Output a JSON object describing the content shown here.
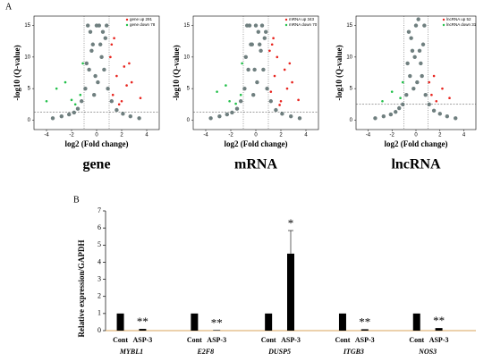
{
  "panel_labels": [
    "A",
    "B"
  ],
  "chart_data": [
    {
      "type": "scatter",
      "subtitle": "gene",
      "xlabel": "log2 (Fold change)",
      "ylabel": "-log10 (Q-value)",
      "xlim": [
        -5,
        5
      ],
      "ylim": [
        -1.5,
        16.5
      ],
      "xticks": [
        -4,
        -2,
        0,
        2,
        4
      ],
      "yticks": [
        0,
        5,
        10,
        15
      ],
      "thresholds": {
        "y": 1.3,
        "x": [
          -1,
          1
        ]
      },
      "series": [
        {
          "color": "#6f7f7f",
          "x": [
            -3.5,
            -2.8,
            -2.2,
            -1.8,
            -1.5,
            -1.2,
            -0.9,
            -0.6,
            -0.3,
            0,
            0.3,
            0.6,
            0.9,
            1.2,
            1.6,
            2.1,
            2.7,
            3.4,
            -0.5,
            0.2,
            0.7,
            -0.8,
            0.1,
            0.4,
            -0.2,
            -0.4,
            0.5,
            -0.7,
            0.8,
            -0.1
          ],
          "values": [
            0.3,
            0.6,
            0.9,
            1.2,
            1.8,
            3,
            5,
            8,
            12,
            15,
            12,
            8,
            5,
            3,
            1.6,
            1,
            0.6,
            0.3,
            14,
            15,
            13,
            9,
            6,
            10,
            4,
            11,
            14,
            15,
            15,
            7
          ]
        },
        {
          "name": "gene up 291",
          "color": "#e8251f",
          "x": [
            1.3,
            1.6,
            2,
            2.4,
            1.1,
            1.8,
            2.8,
            3.5,
            1.4,
            2.2,
            1.2,
            2.6
          ],
          "values": [
            4,
            7,
            3,
            5.5,
            10,
            2.5,
            6,
            3.5,
            13,
            8.5,
            12,
            9
          ]
        },
        {
          "name": "gene down 78",
          "color": "#22c04a",
          "x": [
            -1.3,
            -1.7,
            -2.5,
            -1.1,
            -2,
            -3.2,
            -4
          ],
          "values": [
            4,
            2.5,
            6,
            9,
            3.2,
            5,
            3
          ]
        }
      ]
    },
    {
      "type": "scatter",
      "subtitle": "mRNA",
      "xlabel": "log2 (Fold change)",
      "ylabel": "-log10 (Q-value)",
      "xlim": [
        -5,
        5
      ],
      "ylim": [
        -1.5,
        16.5
      ],
      "xticks": [
        -4,
        -2,
        0,
        2,
        4
      ],
      "yticks": [
        0,
        5,
        10,
        15
      ],
      "thresholds": {
        "y": 1.3,
        "x": [
          -1,
          1
        ]
      },
      "series": [
        {
          "color": "#6f7f7f",
          "x": [
            -3.6,
            -2.9,
            -2.3,
            -1.9,
            -1.5,
            -1.2,
            -0.9,
            -0.6,
            -0.3,
            0,
            0.3,
            0.6,
            0.9,
            1.2,
            1.6,
            2.1,
            2.8,
            3.5,
            -0.5,
            0.2,
            0.7,
            -0.8,
            0.1,
            0.4,
            -0.2,
            -0.4,
            0.5,
            -0.7,
            0.8,
            -0.1
          ],
          "values": [
            0.3,
            0.6,
            0.9,
            1.2,
            1.8,
            3,
            5,
            8,
            12,
            15,
            12,
            8,
            5,
            3,
            1.6,
            1,
            0.6,
            0.3,
            15,
            14,
            13,
            10,
            6,
            11,
            4,
            12,
            15,
            15,
            14,
            8
          ]
        },
        {
          "name": "mRNA up 343",
          "color": "#e8251f",
          "x": [
            1.2,
            1.5,
            2,
            2.5,
            1.1,
            1.9,
            2.9,
            3.4,
            1.4,
            2.3,
            1.3,
            2.7,
            1.7
          ],
          "values": [
            4.5,
            7,
            3,
            5,
            11,
            2.4,
            6,
            3.2,
            13,
            8,
            12,
            9,
            10
          ]
        },
        {
          "name": "mRNA down 70",
          "color": "#22c04a",
          "x": [
            -1.2,
            -1.6,
            -2.4,
            -1.1,
            -2.1,
            -3.1
          ],
          "values": [
            4,
            2.6,
            5.5,
            9,
            3,
            4.5
          ]
        }
      ]
    },
    {
      "type": "scatter",
      "subtitle": "lncRNA",
      "xlabel": "log2 (Fold change)",
      "ylabel": "-log10 (Q-value)",
      "xlim": [
        -5,
        5
      ],
      "ylim": [
        -1.5,
        16.5
      ],
      "xticks": [
        -4,
        -2,
        0,
        2,
        4
      ],
      "yticks": [
        0,
        5,
        10,
        15
      ],
      "thresholds": {
        "y": 2.5,
        "x": [
          -1,
          1
        ]
      },
      "series": [
        {
          "color": "#6f7f7f",
          "x": [
            -3.4,
            -2.7,
            -2.1,
            -1.7,
            -1.4,
            -1.1,
            -0.8,
            -0.5,
            -0.3,
            0,
            0.3,
            0.5,
            0.8,
            1.1,
            1.5,
            2,
            2.6,
            3.3,
            -0.4,
            0.2,
            0.6,
            -0.7,
            0.1,
            0.4,
            -0.2,
            -0.6,
            0.7,
            -0.1
          ],
          "values": [
            0.3,
            0.6,
            0.9,
            1.3,
            1.9,
            2.5,
            4,
            7,
            11,
            15,
            11,
            7,
            4,
            2.5,
            1.5,
            1,
            0.6,
            0.3,
            13,
            16,
            12,
            9,
            6,
            9,
            5,
            14,
            15,
            10
          ]
        },
        {
          "name": "lncRNA up 52",
          "color": "#e8251f",
          "x": [
            1.3,
            1.7,
            2.2,
            1.1,
            2.8,
            1.5
          ],
          "values": [
            4,
            3,
            5,
            6,
            3.5,
            7
          ]
        },
        {
          "name": "lncRNA down 31",
          "color": "#22c04a",
          "x": [
            -1.3,
            -2,
            -1.1,
            -2.8
          ],
          "values": [
            3.5,
            4.5,
            6,
            3
          ]
        }
      ]
    },
    {
      "type": "bar",
      "ylabel": "Relative expression/GAPDH",
      "categories": [
        "MYBL1",
        "E2F8",
        "DUSP5",
        "ITGB3",
        "NOS3"
      ],
      "ylim": [
        0,
        7
      ],
      "yticks": [
        0,
        1,
        2,
        3,
        4,
        5,
        6,
        7
      ],
      "series": [
        {
          "name": "Cont",
          "color": "#000000",
          "values": [
            1,
            1,
            1,
            1,
            1
          ]
        },
        {
          "name": "ASP-3",
          "color": "#000000",
          "values": [
            0.1,
            0.03,
            4.5,
            0.08,
            0.15
          ],
          "errors": [
            null,
            null,
            1.35,
            null,
            null
          ]
        }
      ],
      "annotations": [
        "**",
        "**",
        "*",
        "**",
        "**"
      ]
    }
  ]
}
